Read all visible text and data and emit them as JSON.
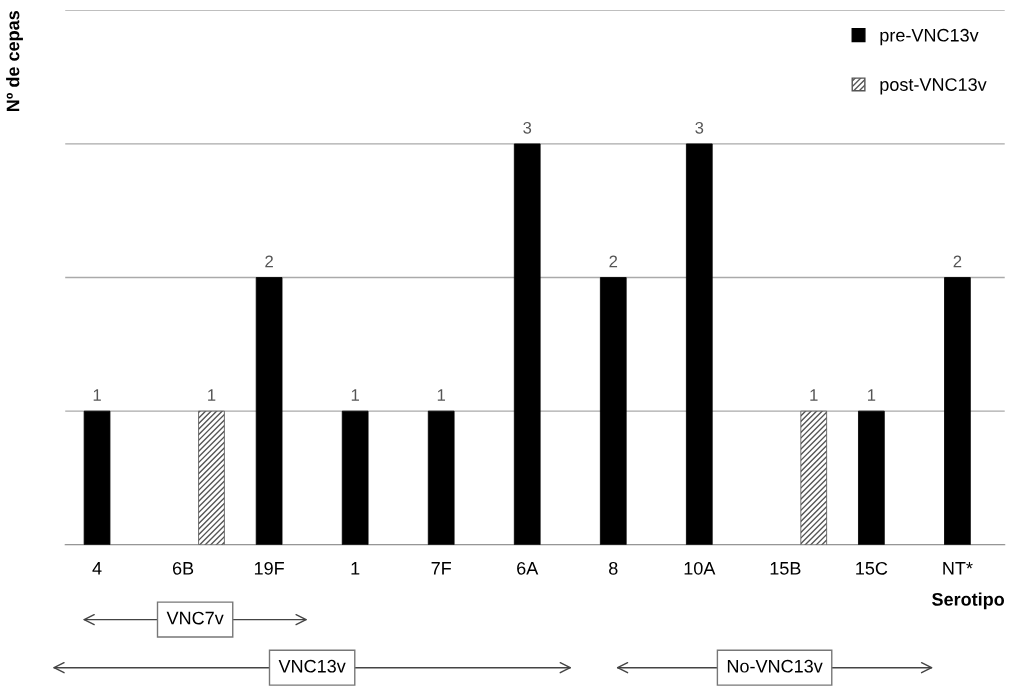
{
  "chart_data": {
    "type": "bar",
    "ylabel": "Nº de cepas",
    "xlabel": "Serotipo",
    "categories": [
      "4",
      "6B",
      "19F",
      "1",
      "7F",
      "6A",
      "8",
      "10A",
      "15B",
      "15C",
      "NT*"
    ],
    "series": [
      {
        "name": "pre-VNC13v",
        "color": "#000000",
        "values": [
          1,
          null,
          2,
          1,
          1,
          3,
          2,
          3,
          null,
          1,
          2
        ]
      },
      {
        "name": "post-VNC13v",
        "color": "#555555",
        "values": [
          null,
          1,
          null,
          null,
          null,
          null,
          null,
          null,
          1,
          null,
          null
        ]
      }
    ],
    "ylim": [
      0,
      4
    ],
    "yticks": [
      {
        "value": 0,
        "label": null
      },
      {
        "value": 1,
        "label": null
      },
      {
        "value": 2,
        "label": null
      },
      {
        "value": 3,
        "label": null
      },
      {
        "value": 4,
        "label": null
      }
    ],
    "tick_labels": "x",
    "grid": "y",
    "legend": "top right",
    "data_labels": true,
    "annotations": [
      "VNC7v",
      "VNC13v",
      "No-VNC13v"
    ]
  }
}
